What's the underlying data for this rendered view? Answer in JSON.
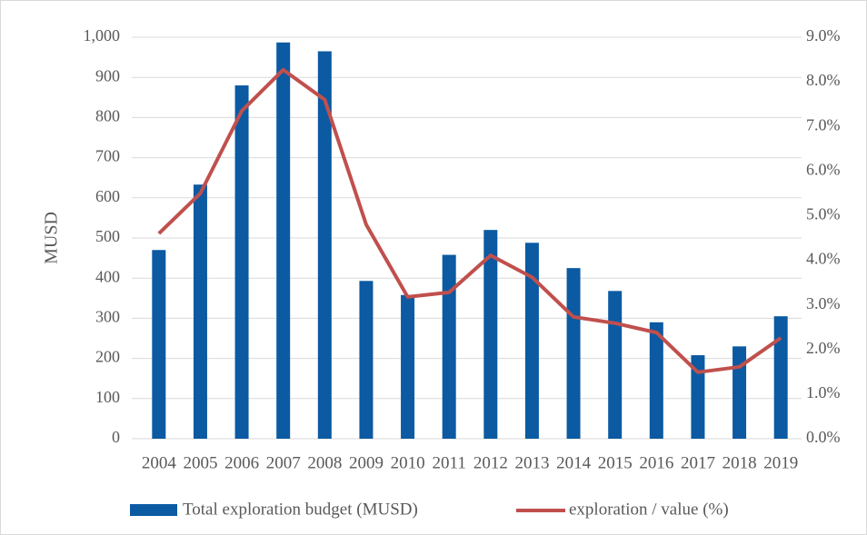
{
  "chart_data": {
    "type": "bar",
    "y_label": "MUSD",
    "categories": [
      "2004",
      "2005",
      "2006",
      "2007",
      "2008",
      "2009",
      "2010",
      "2011",
      "2012",
      "2013",
      "2014",
      "2015",
      "2016",
      "2017",
      "2018",
      "2019"
    ],
    "series": [
      {
        "name": "Total exploration budget (MUSD)",
        "type": "bar",
        "color": "#0b5aa2",
        "values": [
          470,
          633,
          880,
          987,
          965,
          393,
          358,
          458,
          520,
          488,
          425,
          368,
          290,
          208,
          230,
          305
        ]
      },
      {
        "name": "exploration / value (%)",
        "type": "line",
        "axis": "y2",
        "color": "#c0504d",
        "values": [
          4.6,
          5.5,
          7.35,
          8.27,
          7.6,
          4.8,
          3.18,
          3.28,
          4.11,
          3.62,
          2.73,
          2.59,
          2.38,
          1.49,
          1.61,
          2.26
        ]
      }
    ],
    "ylim": [
      0,
      1000
    ],
    "yticks": [
      0,
      100,
      200,
      300,
      400,
      500,
      600,
      700,
      800,
      900,
      {
        "value": 1000,
        "label": "1,000"
      }
    ],
    "y2lim": [
      0,
      9
    ],
    "y2ticks": [
      {
        "value": 0,
        "label": "0.0%"
      },
      {
        "value": 1,
        "label": "1.0%"
      },
      {
        "value": 2,
        "label": "2.0%"
      },
      {
        "value": 3,
        "label": "3.0%"
      },
      {
        "value": 4,
        "label": "4.0%"
      },
      {
        "value": 5,
        "label": "5.0%"
      },
      {
        "value": 6,
        "label": "6.0%"
      },
      {
        "value": 7,
        "label": "7.0%"
      },
      {
        "value": 8,
        "label": "8.0%"
      },
      {
        "value": 9,
        "label": "9.0%"
      }
    ],
    "grid": true,
    "legend": "bottom"
  }
}
